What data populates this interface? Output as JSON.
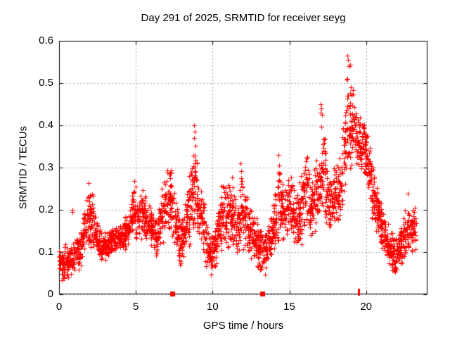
{
  "chart_data": {
    "type": "scatter",
    "title": "Day 291 of 2025, SRMTID for receiver seyg",
    "xlabel": "GPS time / hours",
    "ylabel": "SRMTID / TECUs",
    "series_name": "SRMTID",
    "xlim": [
      0,
      24
    ],
    "ylim": [
      0,
      0.6
    ],
    "xtick_values": [
      0,
      5,
      10,
      15,
      20
    ],
    "xtick_labels": [
      "0",
      "5",
      "10",
      "15",
      "20"
    ],
    "ytick_values": [
      0,
      0.1,
      0.2,
      0.3,
      0.4,
      0.5,
      0.6
    ],
    "ytick_labels": [
      "0",
      "0.1",
      "0.2",
      "0.3",
      "0.4",
      "0.5",
      "0.6"
    ],
    "grid": true,
    "legend": "none",
    "marker": "plus",
    "colors": {
      "marker": "#ff0000",
      "border": "#000000",
      "grid": "#a6a6a6",
      "background": "#ffffff",
      "text": "#000000"
    },
    "envelope": {
      "comment": "per-0.25h [min,max] of SRMTID values, 0h to 23.25h",
      "start": 0,
      "dt": 0.25,
      "bins": [
        [
          0.03,
          0.12
        ],
        [
          0.02,
          0.12
        ],
        [
          0.04,
          0.12
        ],
        [
          0.04,
          0.14
        ],
        [
          0.05,
          0.14
        ],
        [
          0.06,
          0.16
        ],
        [
          0.08,
          0.2
        ],
        [
          0.1,
          0.28
        ],
        [
          0.1,
          0.26
        ],
        [
          0.1,
          0.2
        ],
        [
          0.08,
          0.16
        ],
        [
          0.08,
          0.15
        ],
        [
          0.08,
          0.15
        ],
        [
          0.09,
          0.16
        ],
        [
          0.09,
          0.16
        ],
        [
          0.1,
          0.17
        ],
        [
          0.1,
          0.18
        ],
        [
          0.1,
          0.19
        ],
        [
          0.11,
          0.2
        ],
        [
          0.12,
          0.28
        ],
        [
          0.13,
          0.24
        ],
        [
          0.13,
          0.26
        ],
        [
          0.12,
          0.24
        ],
        [
          0.12,
          0.22
        ],
        [
          0.1,
          0.2
        ],
        [
          0.08,
          0.18
        ],
        [
          0.1,
          0.26
        ],
        [
          0.12,
          0.3
        ],
        [
          0.12,
          0.34
        ],
        [
          0.1,
          0.28
        ],
        [
          0.1,
          0.24
        ],
        [
          0.05,
          0.18
        ],
        [
          0.06,
          0.2
        ],
        [
          0.1,
          0.28
        ],
        [
          0.12,
          0.3
        ],
        [
          0.15,
          0.4
        ],
        [
          0.12,
          0.28
        ],
        [
          0.1,
          0.24
        ],
        [
          0.05,
          0.18
        ],
        [
          0.04,
          0.15
        ],
        [
          0.05,
          0.16
        ],
        [
          0.08,
          0.22
        ],
        [
          0.1,
          0.28
        ],
        [
          0.1,
          0.28
        ],
        [
          0.1,
          0.3
        ],
        [
          0.1,
          0.26
        ],
        [
          0.08,
          0.22
        ],
        [
          0.1,
          0.31
        ],
        [
          0.1,
          0.25
        ],
        [
          0.08,
          0.22
        ],
        [
          0.08,
          0.2
        ],
        [
          0.06,
          0.18
        ],
        [
          0.05,
          0.16
        ],
        [
          0.04,
          0.16
        ],
        [
          0.06,
          0.18
        ],
        [
          0.08,
          0.22
        ],
        [
          0.1,
          0.28
        ],
        [
          0.13,
          0.33
        ],
        [
          0.12,
          0.26
        ],
        [
          0.13,
          0.28
        ],
        [
          0.14,
          0.3
        ],
        [
          0.1,
          0.24
        ],
        [
          0.1,
          0.26
        ],
        [
          0.12,
          0.32
        ],
        [
          0.13,
          0.35
        ],
        [
          0.12,
          0.28
        ],
        [
          0.13,
          0.32
        ],
        [
          0.15,
          0.32
        ],
        [
          0.18,
          0.45
        ],
        [
          0.15,
          0.36
        ],
        [
          0.13,
          0.28
        ],
        [
          0.14,
          0.3
        ],
        [
          0.15,
          0.33
        ],
        [
          0.17,
          0.36
        ],
        [
          0.22,
          0.5
        ],
        [
          0.26,
          0.57
        ],
        [
          0.3,
          0.49
        ],
        [
          0.28,
          0.45
        ],
        [
          0.27,
          0.42
        ],
        [
          0.28,
          0.42
        ],
        [
          0.22,
          0.4
        ],
        [
          0.16,
          0.33
        ],
        [
          0.14,
          0.28
        ],
        [
          0.11,
          0.24
        ],
        [
          0.09,
          0.2
        ],
        [
          0.07,
          0.18
        ],
        [
          0.05,
          0.16
        ],
        [
          0.03,
          0.14
        ],
        [
          0.05,
          0.16
        ],
        [
          0.07,
          0.18
        ],
        [
          0.09,
          0.26
        ],
        [
          0.08,
          0.2
        ],
        [
          0.09,
          0.22
        ]
      ]
    },
    "points_per_bin": 30,
    "seed": 17,
    "outliers": [
      [
        0.85,
        0.2
      ],
      [
        0.88,
        0.195
      ],
      [
        8.78,
        0.37
      ],
      [
        8.8,
        0.4
      ],
      [
        8.82,
        0.385
      ],
      [
        17.03,
        0.43
      ],
      [
        17.05,
        0.45
      ],
      [
        17.07,
        0.44
      ],
      [
        18.78,
        0.51
      ],
      [
        18.8,
        0.565
      ],
      [
        18.83,
        0.555
      ],
      [
        18.87,
        0.54
      ],
      [
        19.0,
        0.49
      ],
      [
        14.3,
        0.33
      ],
      [
        11.8,
        0.31
      ]
    ],
    "axis_markers": [
      {
        "x": 7.37,
        "style": "square"
      },
      {
        "x": 13.25,
        "style": "square"
      },
      {
        "x": 19.5,
        "style": "tick"
      }
    ]
  }
}
